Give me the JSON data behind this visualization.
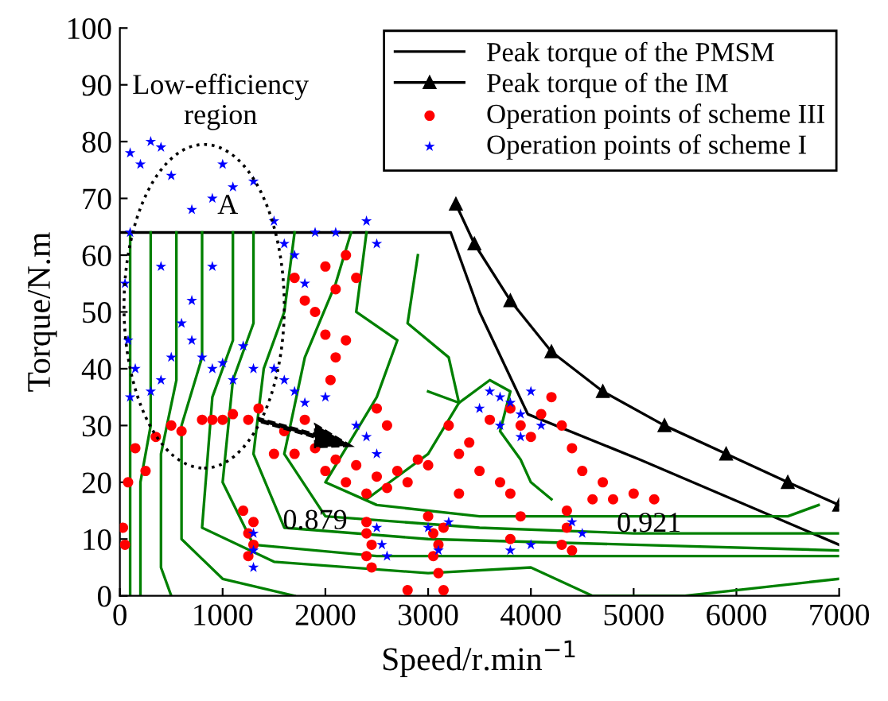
{
  "chart_data": {
    "type": "line",
    "xlabel": "Speed/r.min$^{−1}$",
    "ylabel": "Torque/N.m",
    "xlim": [
      0,
      7000
    ],
    "ylim": [
      0,
      100
    ],
    "xticks": [
      0,
      1000,
      2000,
      3000,
      4000,
      5000,
      6000,
      7000
    ],
    "yticks": [
      0,
      10,
      20,
      30,
      40,
      50,
      60,
      70,
      80,
      90,
      100
    ],
    "grid": false,
    "legend": "top right",
    "annotations": [
      "Low-efficiency\nregion",
      "A",
      {
        "text": "0.879",
        "x": 1900,
        "y": 13
      },
      {
        "text": "0.921",
        "x": 5150,
        "y": 12.5
      }
    ],
    "series": [
      {
        "name": "Peak torque of the PMSM",
        "color": "#000000",
        "marker": "none",
        "x": [
          0,
          3220,
          3500,
          3970,
          5060,
          7000
        ],
        "values": [
          64,
          64,
          50,
          32,
          24,
          9
        ]
      },
      {
        "name": "Peak torque of the IM",
        "color": "#000000",
        "marker": "triangle",
        "x": [
          3270,
          3450,
          3800,
          4200,
          4700,
          5300,
          5900,
          6500,
          7000
        ],
        "values": [
          69,
          62,
          52,
          43,
          36,
          30,
          25,
          20,
          16
        ]
      },
      {
        "name": "Operation points of scheme III",
        "type": "scatter",
        "color": "#ff0000",
        "marker": "circle",
        "x": [
          30,
          50,
          80,
          150,
          250,
          350,
          500,
          600,
          800,
          900,
          1100,
          1250,
          1000,
          1350,
          1300,
          1250,
          1300,
          1250,
          1200,
          1500,
          1700,
          1900,
          2000,
          2100,
          2200,
          2300,
          2400,
          2500,
          2600,
          2700,
          2800,
          2900,
          3000,
          2400,
          2400,
          2450,
          2400,
          2450,
          3000,
          3050,
          3100,
          3050,
          3100,
          3150,
          2800,
          3150,
          3300,
          3500,
          3400,
          3200,
          3600,
          3800,
          3900,
          4000,
          4100,
          4200,
          4300,
          4400,
          4500,
          4350,
          4350,
          4300,
          4400,
          4600,
          4800,
          5000,
          5200,
          4700,
          3700,
          3800,
          3900,
          3800,
          3300,
          2000,
          2100,
          2200,
          1700,
          1800,
          1900,
          2000,
          2100,
          2050,
          2200,
          2300,
          2600,
          2500,
          1800,
          1600
        ],
        "values": [
          12,
          9,
          20,
          26,
          22,
          28,
          30,
          29,
          31,
          31,
          32,
          31,
          31,
          33,
          13,
          11,
          9,
          7,
          15,
          25,
          25,
          26,
          22,
          24,
          20,
          23,
          18,
          21,
          19,
          22,
          20,
          24,
          23,
          13,
          11,
          9,
          7,
          5,
          14,
          11,
          9,
          7,
          4,
          1,
          1,
          12,
          18,
          22,
          27,
          30,
          31,
          33,
          30,
          28,
          32,
          35,
          30,
          26,
          22,
          15,
          12,
          9,
          8,
          17,
          17,
          18,
          17,
          20,
          20,
          18,
          14,
          10,
          25,
          58,
          54,
          60,
          56,
          52,
          50,
          46,
          42,
          38,
          45,
          56,
          30,
          33,
          31,
          29
        ]
      },
      {
        "name": "Operation points of scheme I",
        "type": "scatter",
        "color": "#0000ff",
        "marker": "star",
        "x": [
          100,
          200,
          300,
          400,
          500,
          700,
          900,
          1100,
          1300,
          1000,
          1500,
          1600,
          1700,
          1800,
          1900,
          2100,
          2400,
          2500,
          100,
          50,
          80,
          150,
          100,
          300,
          400,
          500,
          600,
          700,
          800,
          900,
          1000,
          1100,
          1200,
          1300,
          1500,
          1600,
          1700,
          1800,
          2000,
          2300,
          2400,
          2500,
          2500,
          2550,
          2600,
          1300,
          1300,
          1300,
          3000,
          3100,
          3200,
          3500,
          3600,
          3700,
          3800,
          3900,
          4000,
          3700,
          3900,
          4100,
          4400,
          4500,
          3800,
          4000,
          900,
          700,
          400
        ],
        "values": [
          78,
          76,
          80,
          79,
          74,
          68,
          70,
          72,
          73,
          76,
          66,
          62,
          60,
          55,
          64,
          64,
          66,
          62,
          64,
          55,
          45,
          40,
          35,
          36,
          38,
          42,
          48,
          45,
          42,
          40,
          41,
          38,
          44,
          40,
          40,
          38,
          36,
          34,
          35,
          30,
          28,
          25,
          12,
          9,
          7,
          11,
          8,
          5,
          12,
          8,
          13,
          33,
          36,
          35,
          34,
          32,
          36,
          30,
          28,
          30,
          13,
          11,
          8,
          9,
          58,
          52,
          58
        ]
      },
      {
        "type": "line",
        "color": "#008000",
        "marker": "none",
        "x": [
          100,
          100
        ],
        "values": [
          64,
          0
        ]
      },
      {
        "type": "line",
        "color": "#008000",
        "marker": "none",
        "x": [
          300,
          300,
          200,
          200
        ],
        "values": [
          64,
          30,
          20,
          0
        ]
      },
      {
        "type": "line",
        "color": "#008000",
        "marker": "none",
        "x": [
          550,
          550,
          400,
          400,
          500
        ],
        "values": [
          64,
          38,
          25,
          5,
          0
        ]
      },
      {
        "type": "line",
        "color": "#008000",
        "marker": "none",
        "x": [
          800,
          800,
          600,
          600,
          1000,
          1700
        ],
        "values": [
          64,
          42,
          30,
          10,
          3,
          0
        ]
      },
      {
        "type": "line",
        "color": "#008000",
        "marker": "none",
        "x": [
          1100,
          1100,
          900,
          800,
          1500,
          3000,
          4000,
          4600,
          5500,
          7000
        ],
        "values": [
          64,
          45,
          35,
          12,
          6,
          4,
          5,
          0,
          0,
          3
        ]
      },
      {
        "type": "line",
        "color": "#008000",
        "marker": "none",
        "x": [
          1300,
          1300,
          1100,
          1000,
          1300,
          2500,
          4500,
          7000
        ],
        "values": [
          64,
          48,
          38,
          20,
          9,
          7,
          7,
          7
        ]
      },
      {
        "type": "line",
        "color": "#008000",
        "marker": "none",
        "x": [
          1700,
          1600,
          1400,
          1300,
          1600,
          3000,
          5000,
          7000
        ],
        "values": [
          64,
          50,
          40,
          25,
          12,
          10,
          9,
          8
        ]
      },
      {
        "type": "line",
        "color": "#008000",
        "marker": "none",
        "x": [
          2250,
          2100,
          1800,
          1600,
          2000,
          3500,
          5000,
          7000
        ],
        "values": [
          64,
          55,
          42,
          25,
          14,
          12,
          11,
          11
        ]
      },
      {
        "type": "line",
        "color": "#008000",
        "marker": "none",
        "x": [
          2400,
          2300,
          2700,
          2500,
          2000,
          2500,
          3500,
          6500,
          6800
        ],
        "values": [
          64,
          50,
          45,
          35,
          20,
          16,
          14,
          14,
          16
        ]
      },
      {
        "type": "line",
        "color": "#008000",
        "marker": "none",
        "x": [
          2900,
          2800,
          3200,
          3300,
          3000,
          2400
        ],
        "values": [
          60,
          48,
          42,
          34,
          25,
          17
        ]
      },
      {
        "type": "line",
        "color": "#008000",
        "marker": "none",
        "x": [
          3000,
          3300,
          3600,
          3800,
          3700,
          3900,
          4000,
          4200
        ],
        "values": [
          36,
          34,
          38,
          36,
          29,
          24,
          20,
          17
        ]
      }
    ]
  }
}
